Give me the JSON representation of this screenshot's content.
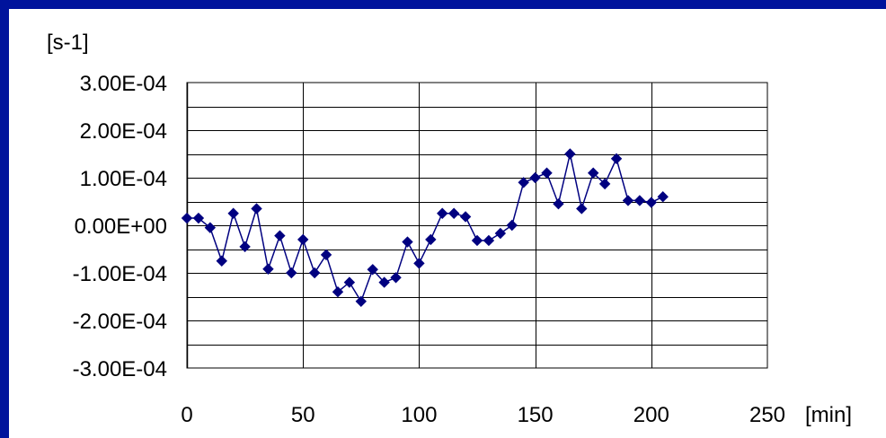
{
  "chart_data": {
    "type": "scatter",
    "title": "",
    "ylabel": "[s-1]",
    "xlabel": "[min]",
    "xlim": [
      0,
      250
    ],
    "ylim": [
      -0.0003,
      0.0003
    ],
    "x_ticks": [
      0,
      50,
      100,
      150,
      200,
      250
    ],
    "x_tick_labels": [
      "0",
      "50",
      "100",
      "150",
      "200",
      "250"
    ],
    "y_ticks": [
      0.0003,
      0.0002,
      0.0001,
      0,
      -0.0001,
      -0.0002,
      -0.0003
    ],
    "y_tick_labels": [
      "3.00E-04",
      "2.00E-04",
      "1.00E-04",
      "0.00E+00",
      "-1.00E-04",
      "-2.00E-04",
      "-3.00E-04"
    ],
    "grid": true,
    "line_color": "#000080",
    "marker": "diamond",
    "series": [
      {
        "x": [
          0,
          5,
          10,
          15,
          20,
          25,
          30,
          35,
          40,
          45,
          50,
          55,
          60,
          65,
          70,
          75,
          80,
          85,
          90,
          95,
          100,
          105,
          110,
          115,
          120,
          125,
          130,
          135,
          140,
          145,
          150,
          155,
          160,
          165,
          170,
          175,
          180,
          185,
          190,
          195,
          200,
          205
        ],
        "y": [
          1.5e-05,
          1.5e-05,
          -5e-06,
          -7.5e-05,
          2.5e-05,
          -4.5e-05,
          3.5e-05,
          -9.2e-05,
          -2.2e-05,
          -0.0001,
          -3e-05,
          -0.0001,
          -6.2e-05,
          -0.00014,
          -0.00012,
          -0.00016,
          -9.3e-05,
          -0.00012,
          -0.00011,
          -3.5e-05,
          -8e-05,
          -3e-05,
          2.5e-05,
          2.5e-05,
          1.8e-05,
          -3.2e-05,
          -3.2e-05,
          -1.7e-05,
          0.0,
          9e-05,
          0.0001,
          0.00011,
          4.5e-05,
          0.00015,
          3.5e-05,
          0.00011,
          8.7e-05,
          0.00014,
          5.2e-05,
          5.2e-05,
          4.8e-05,
          6e-05
        ]
      }
    ]
  }
}
